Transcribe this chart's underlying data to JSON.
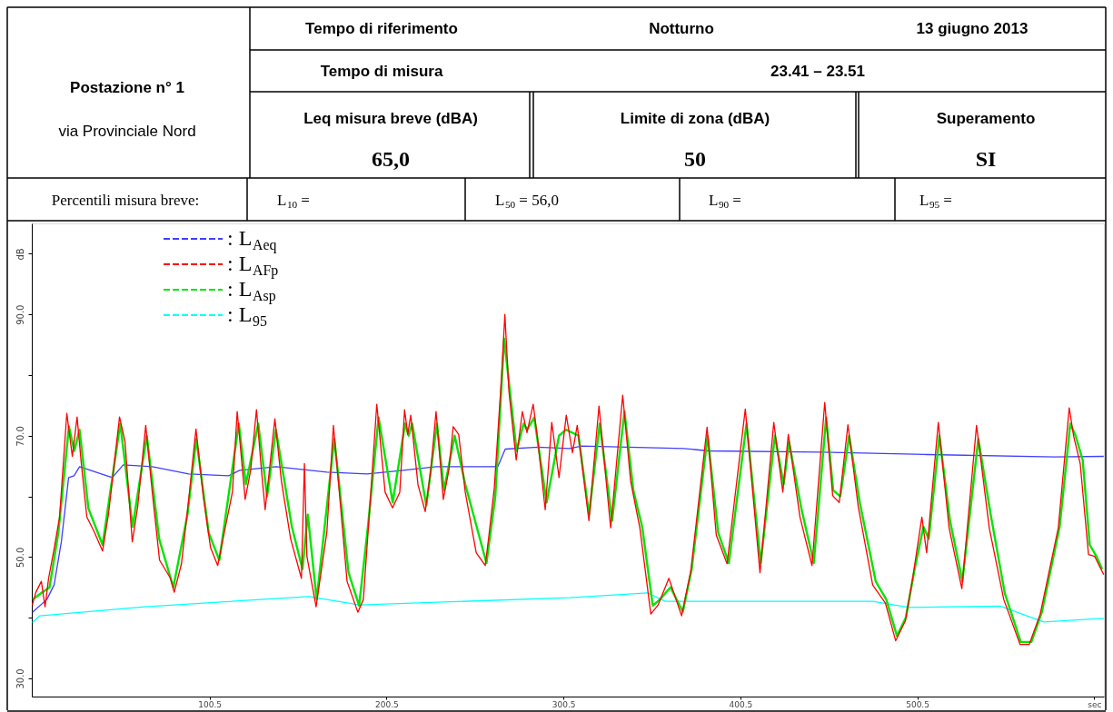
{
  "chart_data": {
    "type": "line",
    "annotations": [
      "Postazione n° 1",
      "via Provinciale Nord",
      "Tempo di riferimento",
      "Notturno",
      "13 giugno 2013",
      "Tempo di misura",
      "23.41 – 23.51",
      "Leq misura breve (dBA)",
      "65,0",
      "Limite di zona (dBA)",
      "50",
      "Superamento",
      "SI",
      "Percentili misura breve:",
      "L$_{10}$ =",
      "L$_{50}$ =   56,0",
      "L$_{90}$ =",
      "L$_{95}$ ="
    ],
    "xlim": [
      0,
      606
    ],
    "xticks": [
      100.5,
      200.5,
      300.5,
      400.5,
      500.5,
      {
        "value": 600.5,
        "label": "sec"
      }
    ],
    "ylim": [
      27,
      105
    ],
    "yticks": [
      {
        "value": 30,
        "label": "30.0"
      },
      {
        "value": 40,
        "label": null
      },
      {
        "value": 50,
        "label": "50.0"
      },
      {
        "value": 60,
        "label": null
      },
      {
        "value": 70,
        "label": "70.0"
      },
      {
        "value": 80,
        "label": null
      },
      {
        "value": 90,
        "label": "90.0"
      },
      {
        "value": 100,
        "label": "dB"
      }
    ],
    "legend": "top left",
    "series": [
      {
        "name": ": L$_{Aeq}$",
        "color": "#3f3fff",
        "x": [
          0.3,
          8.5,
          12.6,
          16.7,
          20.8,
          23.9,
          27,
          45.5,
          51.7,
          68.1,
          88.7,
          111.3,
          117.5,
          138.1,
          166.8,
          189.5,
          210,
          228.5,
          263.4,
          267.6,
          286.1,
          304,
          310.8,
          368.4,
          382.7,
          446.5,
          506.2,
          578.2,
          605.9
        ],
        "values": [
          40.9,
          43,
          45.4,
          52.5,
          63.1,
          63.4,
          64.9,
          63.1,
          65.2,
          64.9,
          63.7,
          63.4,
          64.3,
          64.9,
          64,
          63.7,
          64.3,
          64.9,
          64.9,
          67.8,
          68.1,
          67.9,
          68.3,
          67.9,
          67.5,
          67.3,
          66.9,
          66.5,
          66.6
        ]
      },
      {
        "name": ": L$_{AFp}$",
        "color": "#ff0000",
        "x": [
          0.3,
          2.3,
          5.4,
          7.5,
          9.5,
          12.6,
          15.7,
          19.8,
          22.9,
          25.6,
          28,
          31.1,
          35.2,
          40,
          43.4,
          49.6,
          52.7,
          56.8,
          59.9,
          64.4,
          68.1,
          72.2,
          78.4,
          80.5,
          84.6,
          88.7,
          92.8,
          96.9,
          101,
          105.1,
          109.3,
          113.4,
          116.1,
          120.6,
          123.7,
          127,
          129.8,
          131.9,
          137.4,
          141.1,
          146.3,
          152.4,
          154.1,
          155.5,
          160.7,
          166.8,
          170.5,
          174,
          178.2,
          184.3,
          187.4,
          191.5,
          195,
          199.7,
          203.9,
          208,
          210.7,
          212.5,
          214.2,
          218.3,
          222.4,
          225.5,
          228.5,
          232.6,
          235.7,
          238.2,
          241.3,
          245,
          251.2,
          256.3,
          258.4,
          261.4,
          265.5,
          267.4,
          269.7,
          273.8,
          277.3,
          279.9,
          283.4,
          286.1,
          290.2,
          293.9,
          298,
          302.1,
          305.6,
          308.3,
          314.9,
          320.6,
          327.2,
          334,
          338.5,
          343.7,
          349.9,
          354,
          360.1,
          367.3,
          372.5,
          381.7,
          386.9,
          393,
          403.3,
          411.6,
          419.4,
          424.5,
          427.6,
          434.2,
          441,
          448.2,
          452.7,
          456.4,
          461.3,
          467.1,
          475.3,
          482.5,
          488.3,
          493.8,
          497.9,
          503.1,
          505.8,
          512.4,
          518.5,
          525.7,
          534,
          541.2,
          549.4,
          558.6,
          563.8,
          570,
          580.2,
          586.4,
          588.9,
          592.6,
          597.3,
          600.8,
          605.9
        ],
        "values": [
          42.1,
          44.2,
          46,
          41.8,
          46.5,
          51.3,
          56.6,
          73.7,
          66.6,
          73.1,
          65.4,
          56.6,
          54.2,
          51,
          57.2,
          73.1,
          69,
          52.5,
          58.4,
          71.7,
          60.7,
          49.5,
          46.5,
          44.2,
          48.9,
          59.5,
          71.1,
          60.1,
          51.6,
          48.6,
          54.8,
          60.7,
          74,
          59.5,
          64.3,
          74.3,
          64.3,
          57.8,
          72.8,
          62.5,
          53,
          46.5,
          65.4,
          50.1,
          41.8,
          54.2,
          71.7,
          60.1,
          46,
          40.9,
          43,
          60.1,
          75.2,
          60.7,
          58.1,
          60.7,
          74.3,
          70.2,
          73.4,
          61.9,
          57.5,
          64.3,
          74,
          59.5,
          64.3,
          71.5,
          70.2,
          60.7,
          50.7,
          48.6,
          53.6,
          61.3,
          79.6,
          90,
          77.3,
          66,
          74,
          70.5,
          75.2,
          69,
          57.8,
          72.2,
          63.1,
          73.4,
          67.2,
          71.7,
          56,
          74.9,
          54.8,
          76.7,
          62.5,
          54.8,
          40.6,
          42.1,
          46.5,
          40.3,
          47.7,
          71.4,
          53.6,
          48.9,
          74.4,
          47.4,
          72.2,
          60.7,
          70.2,
          56.6,
          48.6,
          75.5,
          60.1,
          59,
          71.8,
          58.4,
          45.4,
          42.4,
          36.2,
          39.5,
          46.5,
          56.6,
          50.7,
          72.2,
          54.8,
          44.8,
          71.7,
          54.8,
          43,
          35.6,
          35.6,
          40.6,
          54.8,
          74.6,
          69.9,
          65.4,
          50.4,
          50.1,
          47.1
        ]
      },
      {
        "name": ": L$_{Asp}$",
        "color": "#00e600",
        "x": [
          0.5,
          5,
          10,
          15,
          21,
          24,
          27,
          32,
          40,
          50,
          57,
          65,
          72,
          80,
          88,
          93,
          100,
          106,
          117,
          121,
          128,
          133,
          138,
          147,
          153,
          156,
          161,
          171,
          179,
          185,
          190,
          196,
          204,
          211,
          213,
          215,
          223,
          229,
          233,
          239,
          245,
          257,
          262,
          267,
          270,
          274,
          278,
          280,
          284,
          291,
          298,
          302,
          309,
          315,
          321,
          328,
          335,
          340,
          345,
          351,
          355,
          361,
          368,
          373,
          382,
          388,
          394,
          404,
          412,
          420,
          425,
          428,
          435,
          442,
          449,
          453,
          457,
          462,
          468,
          477,
          483,
          489,
          494,
          499,
          504,
          507,
          513,
          519,
          526,
          535,
          542,
          550,
          559,
          565,
          571,
          581,
          587,
          590,
          594,
          598,
          602,
          605
        ],
        "values": [
          43,
          44,
          45,
          54,
          71.5,
          67.5,
          71,
          58,
          52,
          72,
          55,
          70,
          53,
          45,
          57,
          69.5,
          54,
          49.5,
          72,
          62,
          72,
          60,
          71,
          55,
          48,
          57,
          43,
          69.5,
          47.5,
          42,
          55,
          73,
          59,
          72,
          70,
          72,
          58.5,
          72,
          61,
          70,
          62,
          49,
          60,
          86,
          78,
          67.5,
          72,
          71,
          73,
          59,
          70,
          71,
          70,
          57,
          72,
          56,
          74,
          61,
          55,
          42,
          43,
          45,
          41,
          48,
          70,
          54,
          49,
          72,
          49,
          70,
          62,
          69,
          58,
          49,
          73,
          61,
          60,
          70,
          59,
          46,
          43,
          37,
          40,
          48,
          55,
          53,
          70,
          56,
          46,
          69.5,
          57,
          44,
          36,
          36,
          41,
          55,
          72,
          70,
          66,
          52,
          50,
          48
        ]
      },
      {
        "name": ": L$_{95}$",
        "color": "#00ffff",
        "x": [
          0.3,
          4.4,
          64,
          156.5,
          185.4,
          304,
          347.8,
          358.1,
          475.3,
          495.9,
          547.3,
          572,
          605.9
        ],
        "values": [
          39.2,
          40.3,
          41.8,
          43.5,
          42.1,
          43.3,
          44.1,
          42.7,
          42.7,
          41.7,
          41.9,
          39.3,
          39.9
        ]
      }
    ]
  }
}
